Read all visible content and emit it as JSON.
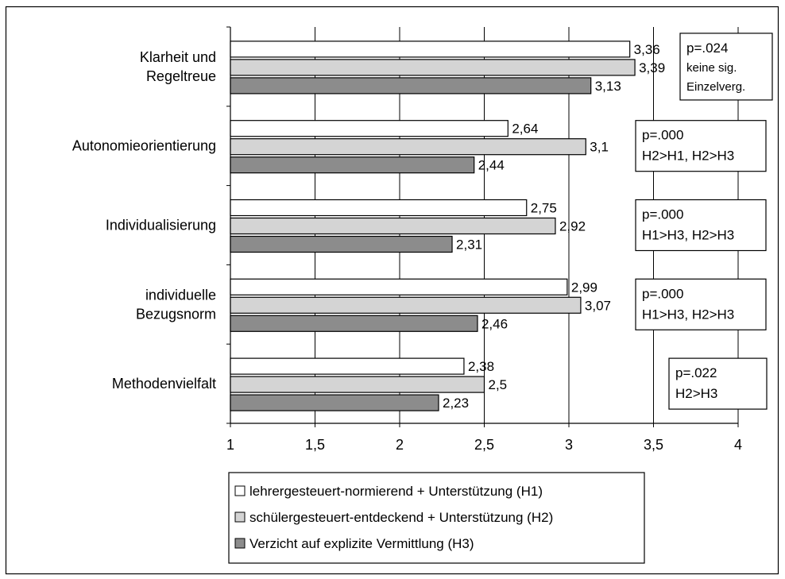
{
  "chart_data": {
    "type": "bar",
    "orientation": "horizontal",
    "categories": [
      [
        "Klarheit und",
        "Regeltreue"
      ],
      [
        "Autonomieorientierung"
      ],
      [
        "Individualisierung"
      ],
      [
        "individuelle",
        "Bezugsnorm"
      ],
      [
        "Methodenvielfalt"
      ]
    ],
    "series": [
      {
        "name": "lehrergesteuert-normierend + Unterstützung (H1)",
        "color": "#ffffff",
        "values": [
          3.36,
          2.64,
          2.75,
          2.99,
          2.38
        ],
        "labels": [
          "3,36",
          "2,64",
          "2,75",
          "2,99",
          "2,38"
        ]
      },
      {
        "name": "schülergesteuert-entdeckend + Unterstützung (H2)",
        "color": "#d4d4d4",
        "values": [
          3.39,
          3.1,
          2.92,
          3.07,
          2.5
        ],
        "labels": [
          "3,39",
          "3,1",
          "2,92",
          "3,07",
          "2,5"
        ]
      },
      {
        "name": "Verzicht auf explizite Vermittlung (H3)",
        "color": "#8c8c8c",
        "values": [
          3.13,
          2.44,
          2.31,
          2.46,
          2.23
        ],
        "labels": [
          "3,13",
          "2,44",
          "2,31",
          "2,46",
          "2,23"
        ]
      }
    ],
    "xlim": [
      1,
      4
    ],
    "xticks": [
      1,
      1.5,
      2,
      2.5,
      3,
      3.5,
      4
    ],
    "xtick_labels": [
      "1",
      "1,5",
      "2",
      "2,5",
      "3",
      "3,5",
      "4"
    ],
    "grid": "vertical",
    "legend_position": "bottom",
    "annotations": [
      [
        "p=.024",
        "keine sig.",
        "Einzelverg."
      ],
      [
        "p=.000",
        "H2>H1, H2>H3"
      ],
      [
        "p=.000",
        "H1>H3, H2>H3"
      ],
      [
        "p=.000",
        "H1>H3, H2>H3"
      ],
      [
        "p=.022",
        "H2>H3"
      ]
    ]
  }
}
